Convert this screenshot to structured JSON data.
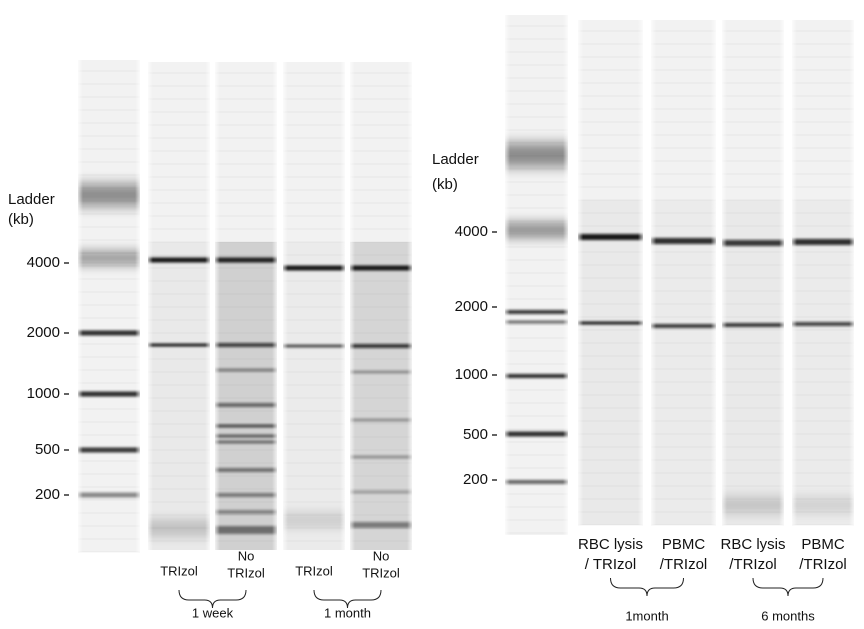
{
  "left_panel": {
    "ladder_label": [
      "Ladder",
      "(kb)"
    ],
    "size_labels": [
      "4000",
      "2000",
      "1000",
      "500",
      "200"
    ],
    "lanes": [
      [
        "TRIzol"
      ],
      [
        "No",
        "TRIzol"
      ],
      [
        "TRIzol"
      ],
      [
        "No",
        "TRIzol"
      ]
    ],
    "groups": [
      "1 week",
      "1 month"
    ]
  },
  "right_panel": {
    "ladder_label": [
      "Ladder",
      "(kb)"
    ],
    "size_labels": [
      "4000",
      "2000",
      "1000",
      "500",
      "200"
    ],
    "lanes": [
      [
        "RBC lysis",
        "/ TRIzol"
      ],
      [
        "PBMC",
        "/TRIzol"
      ],
      [
        "RBC lysis",
        "/TRIzol"
      ],
      [
        "PBMC",
        "/TRIzol"
      ]
    ],
    "groups": [
      "1month",
      "6 months"
    ]
  }
}
